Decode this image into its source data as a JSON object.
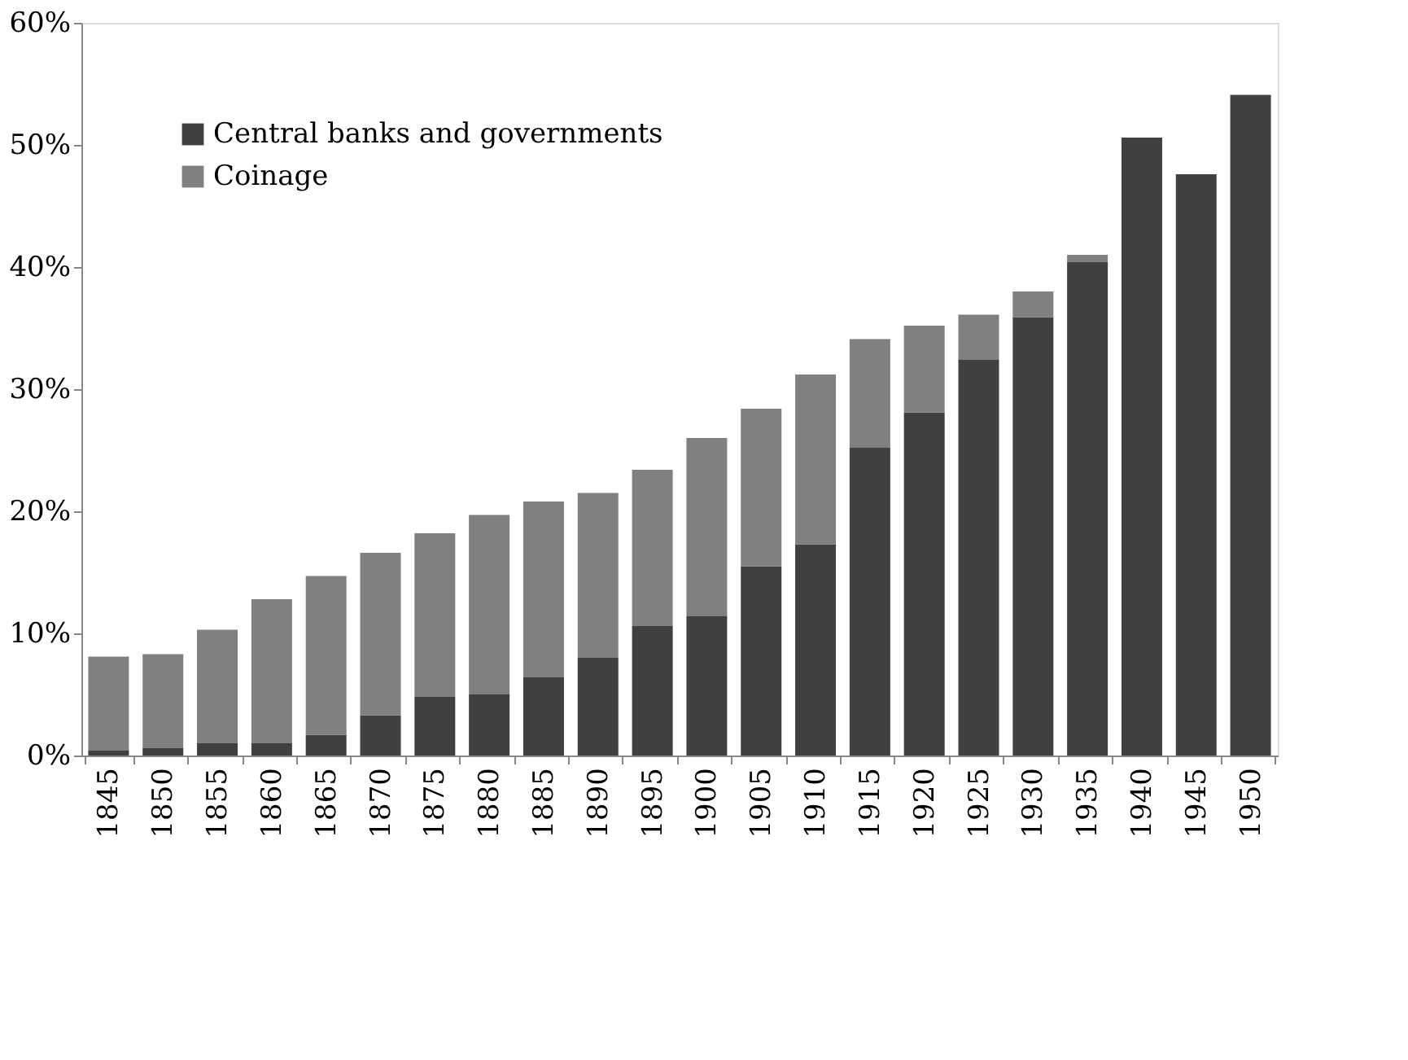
{
  "chart_data": {
    "type": "bar",
    "stacked": true,
    "categories": [
      "1845",
      "1850",
      "1855",
      "1860",
      "1865",
      "1870",
      "1875",
      "1880",
      "1885",
      "1890",
      "1895",
      "1900",
      "1905",
      "1910",
      "1915",
      "1920",
      "1925",
      "1930",
      "1935",
      "1940",
      "1945",
      "1950"
    ],
    "series": [
      {
        "name": "Central banks and governments",
        "color": "#404040",
        "values": [
          0.4,
          0.6,
          1.0,
          1.0,
          1.7,
          3.3,
          4.8,
          5.0,
          6.4,
          8.0,
          10.6,
          11.4,
          15.5,
          17.3,
          25.2,
          28.1,
          32.4,
          35.9,
          40.4,
          50.6,
          47.6,
          54.1
        ]
      },
      {
        "name": "Coinage",
        "color": "#808080",
        "values": [
          7.7,
          7.7,
          9.3,
          11.8,
          13.0,
          13.3,
          13.4,
          14.7,
          14.4,
          13.5,
          12.8,
          14.6,
          12.9,
          13.9,
          8.9,
          7.1,
          3.7,
          2.1,
          0.6,
          null,
          null,
          null
        ]
      }
    ],
    "ylim": [
      0,
      60
    ],
    "yticks": [
      {
        "value": 0,
        "label": "0%"
      },
      {
        "value": 10,
        "label": "10%"
      },
      {
        "value": 20,
        "label": "20%"
      },
      {
        "value": 30,
        "label": "30%"
      },
      {
        "value": 40,
        "label": "40%"
      },
      {
        "value": 50,
        "label": "50%"
      },
      {
        "value": 60,
        "label": "60%"
      }
    ],
    "grid": false,
    "legend": "top left"
  }
}
